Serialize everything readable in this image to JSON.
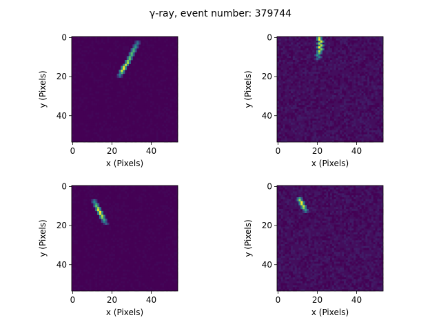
{
  "figure": {
    "title": "γ-ray, event number: 379744"
  },
  "chart_data": [
    {
      "type": "heatmap",
      "title": "",
      "xlabel": "x (Pixels)",
      "ylabel": "y (Pixels)",
      "xlim": [
        -0.5,
        53.5
      ],
      "ylim": [
        53.5,
        -0.5
      ],
      "xticks": [
        0,
        20,
        40
      ],
      "yticks": [
        0,
        20,
        40
      ],
      "grid": false,
      "colormap": "viridis",
      "background_level": 0.0,
      "noise_level": 0.02,
      "track": [
        {
          "x": 33,
          "y": 2,
          "v": 0.3
        },
        {
          "x": 33,
          "y": 3,
          "v": 0.4
        },
        {
          "x": 32,
          "y": 4,
          "v": 0.45
        },
        {
          "x": 32,
          "y": 5,
          "v": 0.55
        },
        {
          "x": 31,
          "y": 6,
          "v": 0.6
        },
        {
          "x": 31,
          "y": 7,
          "v": 0.65
        },
        {
          "x": 30,
          "y": 8,
          "v": 0.7
        },
        {
          "x": 30,
          "y": 9,
          "v": 0.65
        },
        {
          "x": 29,
          "y": 10,
          "v": 0.7
        },
        {
          "x": 29,
          "y": 11,
          "v": 0.75
        },
        {
          "x": 28,
          "y": 12,
          "v": 0.8
        },
        {
          "x": 28,
          "y": 13,
          "v": 0.85
        },
        {
          "x": 27,
          "y": 14,
          "v": 0.9
        },
        {
          "x": 26,
          "y": 15,
          "v": 0.95
        },
        {
          "x": 26,
          "y": 16,
          "v": 1.0
        },
        {
          "x": 25,
          "y": 17,
          "v": 0.95
        },
        {
          "x": 25,
          "y": 18,
          "v": 0.7
        },
        {
          "x": 24,
          "y": 19,
          "v": 0.45
        },
        {
          "x": 24,
          "y": 20,
          "v": 0.3
        }
      ]
    },
    {
      "type": "heatmap",
      "title": "",
      "xlabel": "x (Pixels)",
      "ylabel": "y (Pixels)",
      "xlim": [
        -0.5,
        53.5
      ],
      "ylim": [
        53.5,
        -0.5
      ],
      "xticks": [
        0,
        20,
        40
      ],
      "yticks": [
        0,
        20,
        40
      ],
      "grid": false,
      "colormap": "viridis",
      "background_level": 0.04,
      "noise_level": 0.05,
      "track": [
        {
          "x": 21,
          "y": 0,
          "v": 0.9
        },
        {
          "x": 21,
          "y": 1,
          "v": 1.0
        },
        {
          "x": 22,
          "y": 2,
          "v": 0.95
        },
        {
          "x": 21,
          "y": 3,
          "v": 0.85
        },
        {
          "x": 22,
          "y": 4,
          "v": 0.9
        },
        {
          "x": 21,
          "y": 5,
          "v": 1.0
        },
        {
          "x": 22,
          "y": 6,
          "v": 0.8
        },
        {
          "x": 21,
          "y": 7,
          "v": 0.9
        },
        {
          "x": 21,
          "y": 8,
          "v": 0.7
        },
        {
          "x": 20,
          "y": 9,
          "v": 0.5
        },
        {
          "x": 21,
          "y": 10,
          "v": 0.45
        },
        {
          "x": 20,
          "y": 11,
          "v": 0.3
        }
      ]
    },
    {
      "type": "heatmap",
      "title": "",
      "xlabel": "x (Pixels)",
      "ylabel": "y (Pixels)",
      "xlim": [
        -0.5,
        53.5
      ],
      "ylim": [
        53.5,
        -0.5
      ],
      "xticks": [
        0,
        20,
        40
      ],
      "yticks": [
        0,
        20,
        40
      ],
      "grid": false,
      "colormap": "viridis",
      "background_level": 0.0,
      "noise_level": 0.02,
      "track": [
        {
          "x": 11,
          "y": 7,
          "v": 0.35
        },
        {
          "x": 11,
          "y": 8,
          "v": 0.5
        },
        {
          "x": 12,
          "y": 9,
          "v": 0.6
        },
        {
          "x": 12,
          "y": 10,
          "v": 0.75
        },
        {
          "x": 13,
          "y": 11,
          "v": 0.85
        },
        {
          "x": 13,
          "y": 12,
          "v": 0.95
        },
        {
          "x": 14,
          "y": 13,
          "v": 1.0
        },
        {
          "x": 14,
          "y": 14,
          "v": 0.95
        },
        {
          "x": 15,
          "y": 15,
          "v": 0.9
        },
        {
          "x": 15,
          "y": 16,
          "v": 0.8
        },
        {
          "x": 16,
          "y": 17,
          "v": 0.6
        },
        {
          "x": 16,
          "y": 18,
          "v": 0.45
        },
        {
          "x": 17,
          "y": 19,
          "v": 0.3
        }
      ]
    },
    {
      "type": "heatmap",
      "title": "",
      "xlabel": "x (Pixels)",
      "ylabel": "y (Pixels)",
      "xlim": [
        -0.5,
        53.5
      ],
      "ylim": [
        53.5,
        -0.5
      ],
      "xticks": [
        0,
        20,
        40
      ],
      "yticks": [
        0,
        20,
        40
      ],
      "grid": false,
      "colormap": "viridis",
      "background_level": 0.04,
      "noise_level": 0.05,
      "track": [
        {
          "x": 11,
          "y": 6,
          "v": 0.6
        },
        {
          "x": 11,
          "y": 7,
          "v": 0.85
        },
        {
          "x": 12,
          "y": 8,
          "v": 1.0
        },
        {
          "x": 12,
          "y": 9,
          "v": 0.95
        },
        {
          "x": 13,
          "y": 10,
          "v": 0.9
        },
        {
          "x": 13,
          "y": 11,
          "v": 0.8
        },
        {
          "x": 14,
          "y": 12,
          "v": 0.55
        },
        {
          "x": 14,
          "y": 13,
          "v": 0.35
        }
      ]
    }
  ]
}
